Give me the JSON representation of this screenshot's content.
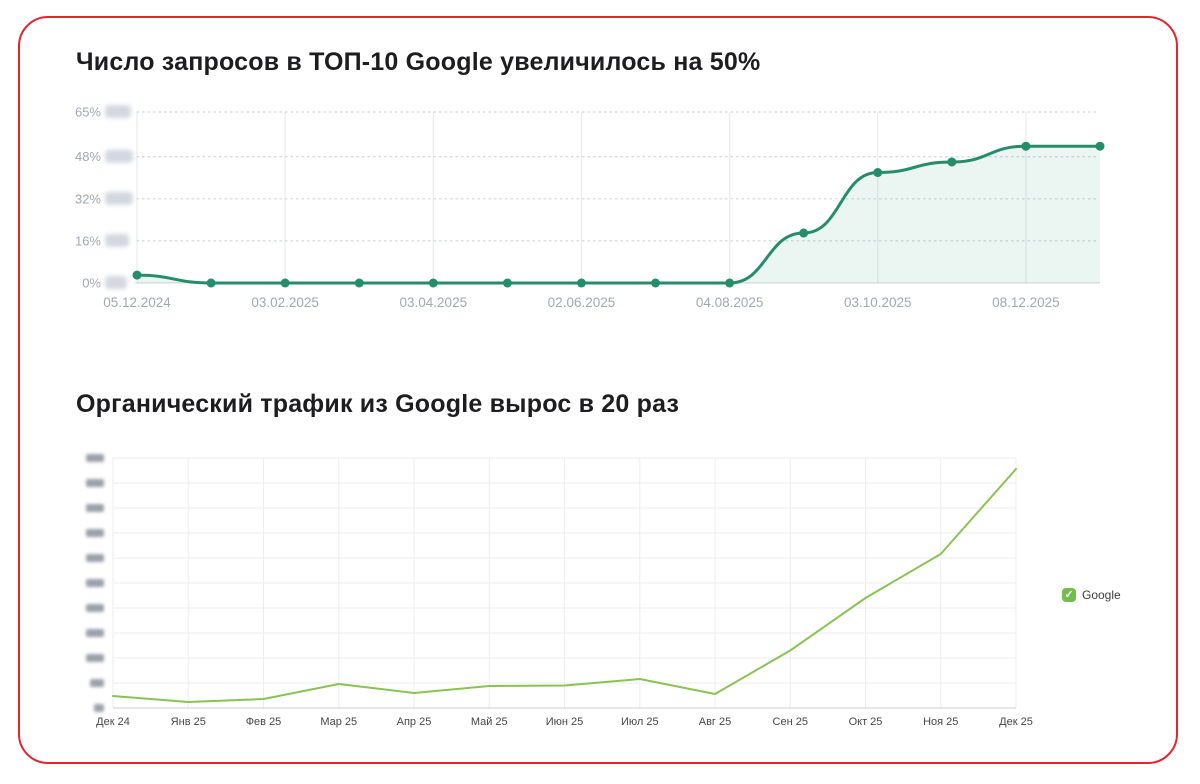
{
  "page": {
    "border_color": "#e5252e",
    "background": "#ffffff"
  },
  "legend": {
    "label": "Google",
    "checkbox_color": "#6fbf4a",
    "checkmark": "✓",
    "position": "right"
  },
  "chart_data": [
    {
      "type": "line",
      "title": "Число запросов в ТОП-10 Google увеличилось на 50%",
      "x_labels": [
        "05.12.2024",
        "03.02.2025",
        "03.04.2025",
        "02.06.2025",
        "04.08.2025",
        "03.10.2025",
        "08.12.2025"
      ],
      "x_label_point_indices": [
        0,
        2,
        4,
        6,
        8,
        10,
        12
      ],
      "values": [
        3,
        0,
        0,
        0,
        0,
        0,
        0,
        0,
        0,
        19,
        42,
        46,
        52,
        52
      ],
      "y_ticks": [
        "0%",
        "16%",
        "32%",
        "48%",
        "65%"
      ],
      "y_tick_values": [
        0,
        16,
        32,
        48,
        65
      ],
      "ylim": [
        0,
        65
      ],
      "line_color": "#268d6a",
      "point_color": "#268d6a",
      "fill_color": "rgba(38,141,106,0.09)",
      "grid": "horizontal-dotted, vertical-solid-at-labels",
      "y_counts_redacted": true,
      "legend": null
    },
    {
      "type": "line",
      "title": "Органический трафик из Google вырос в 20 раз",
      "x_labels": [
        "Дек 24",
        "Янв 25",
        "Фев 25",
        "Мар 25",
        "Апр 25",
        "Май 25",
        "Июн 25",
        "Июл 25",
        "Авг 25",
        "Сен 25",
        "Окт 25",
        "Ноя 25",
        "Дек 25"
      ],
      "series": [
        {
          "name": "Google",
          "color": "#89c352",
          "values": [
            24,
            12,
            18,
            48,
            30,
            44,
            45,
            58,
            28,
            115,
            220,
            308,
            478
          ]
        }
      ],
      "y_tick_values": [
        0,
        50,
        100,
        150,
        200,
        250,
        300,
        350,
        400,
        450,
        500
      ],
      "y_tick_labels_redacted": true,
      "ylim": [
        0,
        500
      ],
      "grid": "full-light-grid",
      "legend_position": "right"
    }
  ]
}
